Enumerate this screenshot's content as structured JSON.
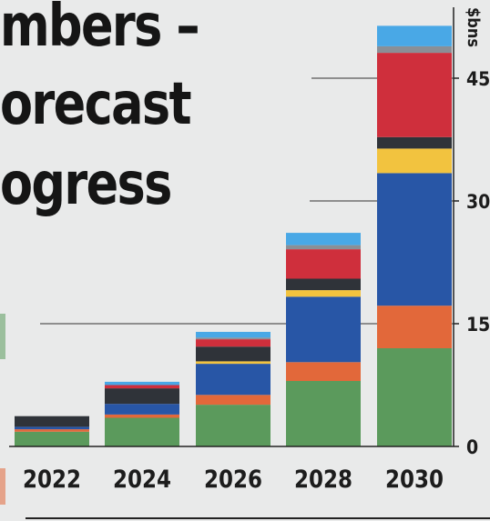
{
  "title_lines": [
    "mbers –",
    "orecast",
    "ogress"
  ],
  "colors": {
    "background": "#e9eaea",
    "green": "#5b9a5c",
    "orange": "#e2683a",
    "blue": "#2856a6",
    "yellow": "#f2c33f",
    "dark": "#2f3339",
    "red": "#cf2f3c",
    "gray": "#8a8f96",
    "light_blue": "#49a8e6"
  },
  "chart_data": {
    "type": "bar",
    "stacked": true,
    "ylabel": "$bns",
    "ylim": [
      0,
      52
    ],
    "yticks": [
      0,
      15,
      30,
      45
    ],
    "grid": true,
    "categories": [
      "2022",
      "2024",
      "2026",
      "2028",
      "2030"
    ],
    "series": [
      {
        "color": "green",
        "values": [
          1.8,
          3.5,
          5.1,
          8.0,
          12.0
        ]
      },
      {
        "color": "orange",
        "values": [
          0.3,
          0.4,
          1.2,
          2.3,
          5.2
        ]
      },
      {
        "color": "blue",
        "values": [
          0.3,
          1.3,
          3.8,
          8.0,
          16.2
        ]
      },
      {
        "color": "yellow",
        "values": [
          0.0,
          0.0,
          0.3,
          0.8,
          3.0
        ]
      },
      {
        "color": "dark",
        "values": [
          1.3,
          1.9,
          1.8,
          1.4,
          1.4
        ]
      },
      {
        "color": "red",
        "values": [
          0.0,
          0.4,
          0.9,
          3.6,
          10.3
        ]
      },
      {
        "color": "gray",
        "values": [
          0.0,
          0.0,
          0.2,
          0.5,
          0.8
        ]
      },
      {
        "color": "light_blue",
        "values": [
          0.0,
          0.4,
          0.7,
          1.5,
          2.5
        ]
      }
    ]
  }
}
